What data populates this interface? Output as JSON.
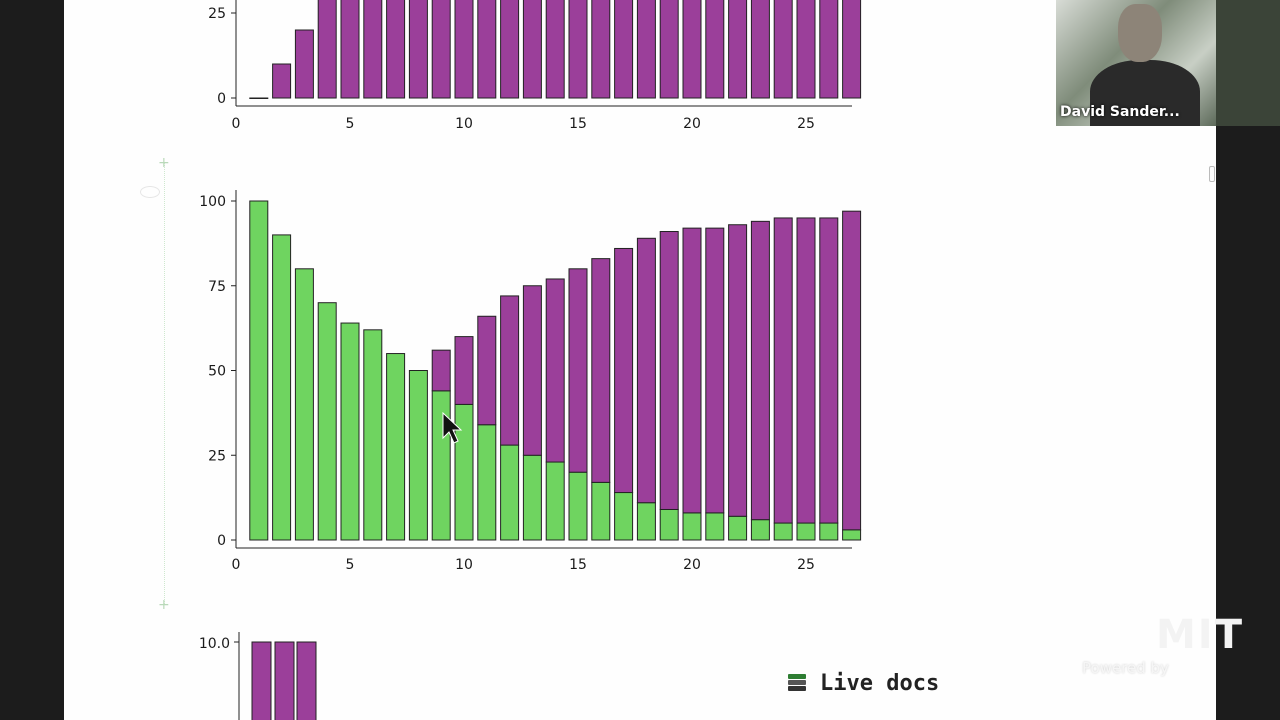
{
  "video": {
    "participant_name": "David Sander..."
  },
  "footer": {
    "live_docs_label": "Live docs",
    "powered_by": "Powered by",
    "logo_text": "MIT"
  },
  "chart_data": [
    {
      "type": "bar",
      "partial": true,
      "x": [
        1,
        2,
        3,
        4,
        5,
        6,
        7,
        8,
        9,
        10,
        11,
        12,
        13,
        14,
        15,
        16,
        17,
        18,
        19,
        20,
        21,
        22,
        23,
        24,
        25,
        26,
        27
      ],
      "series": [
        {
          "color": "#9b3f9a",
          "values": [
            0,
            10,
            20,
            30,
            30,
            30,
            30,
            30,
            30,
            30,
            30,
            30,
            30,
            30,
            30,
            30,
            30,
            30,
            30,
            30,
            30,
            30,
            30,
            30,
            30,
            30,
            30
          ]
        }
      ],
      "xlim": [
        0,
        27
      ],
      "ylim": [
        0,
        30
      ],
      "xticks": [
        0,
        5,
        10,
        15,
        20,
        25
      ],
      "yticks": [
        0,
        25
      ]
    },
    {
      "type": "bar",
      "stacked": true,
      "x": [
        1,
        2,
        3,
        4,
        5,
        6,
        7,
        8,
        9,
        10,
        11,
        12,
        13,
        14,
        15,
        16,
        17,
        18,
        19,
        20,
        21,
        22,
        23,
        24,
        25,
        26,
        27
      ],
      "series": [
        {
          "color": "#6fd460",
          "values": [
            100,
            90,
            80,
            70,
            64,
            62,
            55,
            50,
            44,
            40,
            34,
            28,
            25,
            23,
            20,
            17,
            14,
            11,
            9,
            8,
            8,
            7,
            6,
            5,
            5,
            5,
            3
          ]
        },
        {
          "color": "#9b3f9a",
          "values": [
            0,
            0,
            0,
            0,
            0,
            0,
            0,
            0,
            12,
            20,
            32,
            44,
            50,
            54,
            60,
            66,
            72,
            78,
            82,
            84,
            84,
            86,
            88,
            90,
            90,
            90,
            94
          ]
        }
      ],
      "xlim": [
        0,
        27
      ],
      "ylim": [
        0,
        100
      ],
      "xticks": [
        0,
        5,
        10,
        15,
        20,
        25
      ],
      "yticks": [
        0,
        25,
        50,
        75,
        100
      ]
    },
    {
      "type": "bar",
      "partial": true,
      "x": [
        1,
        2,
        3
      ],
      "series": [
        {
          "color": "#9b3f9a",
          "values": [
            10,
            10,
            10
          ]
        }
      ],
      "yticks_labels": [
        "10.0"
      ]
    }
  ]
}
